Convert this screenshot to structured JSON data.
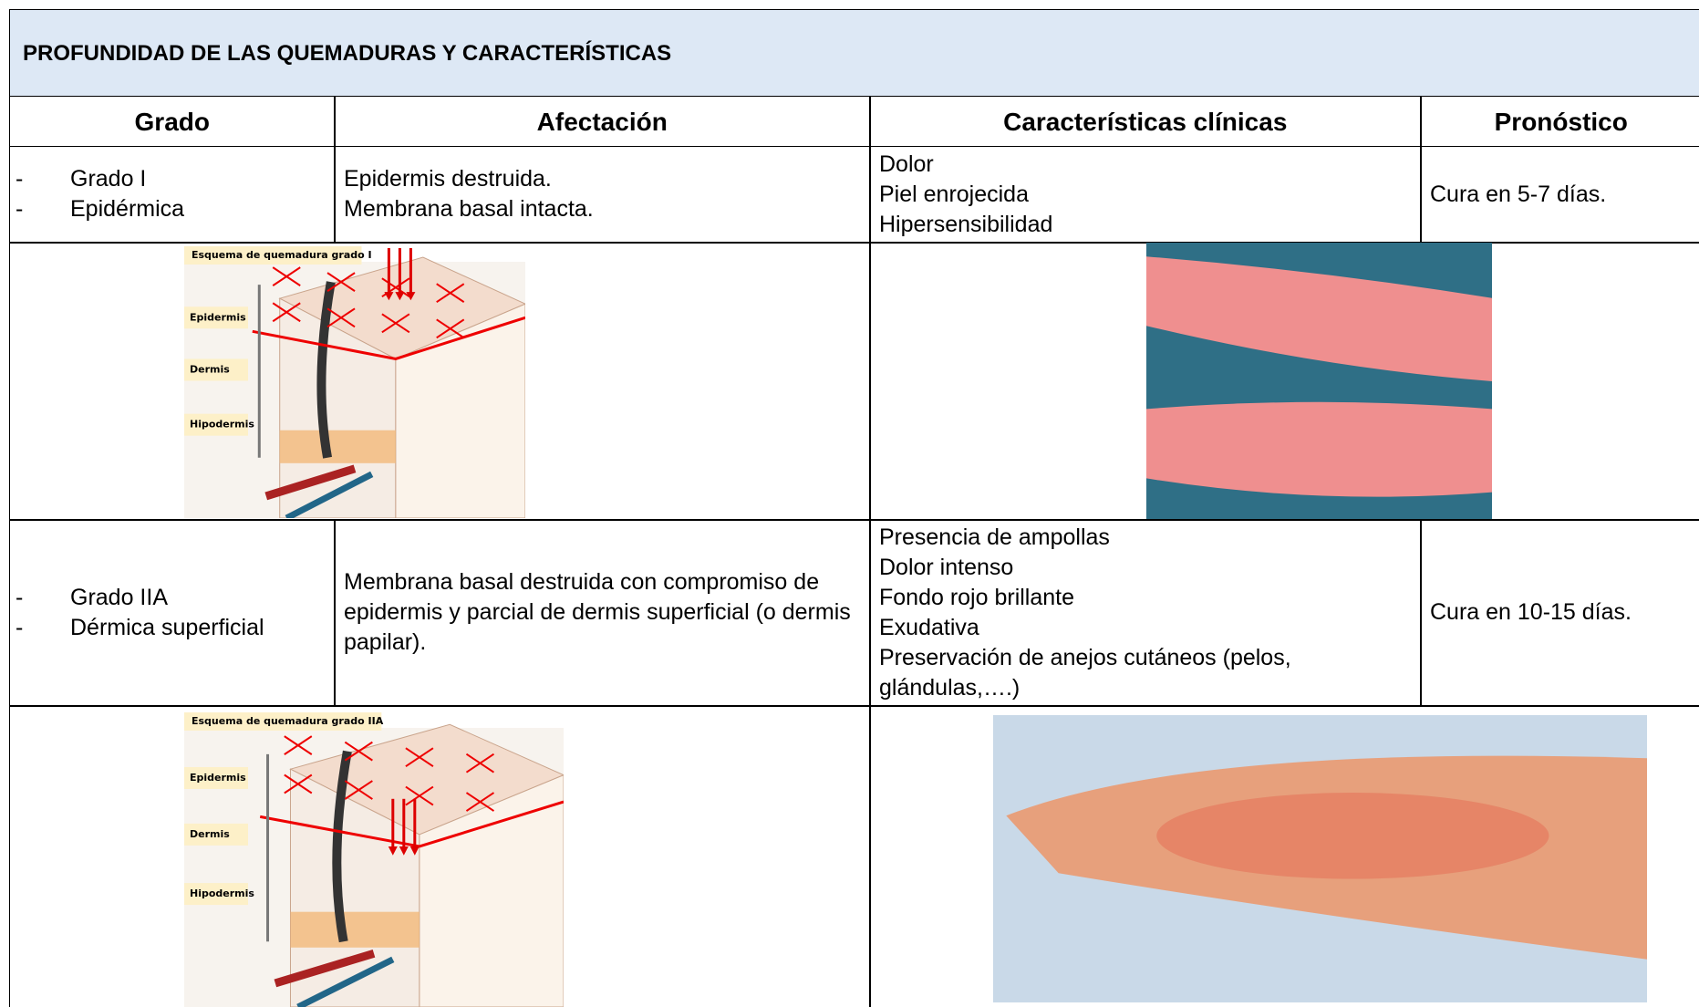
{
  "title": "PROFUNDIDAD DE LAS QUEMADURAS Y CARACTERÍSTICAS",
  "table": {
    "headers": [
      "Grado",
      "Afectación",
      "Características clínicas",
      "Pronóstico"
    ],
    "rows": [
      {
        "grado": [
          "Grado I",
          "Epidérmica"
        ],
        "afectacion": [
          "Epidermis destruida.",
          "Membrana basal intacta."
        ],
        "caracteristicas": [
          "Dolor",
          "Piel enrojecida",
          "Hipersensibilidad"
        ],
        "pronostico": "Cura en 5-7 días.",
        "diagram": {
          "title": "Esquema de quemadura grado I",
          "labels": [
            "Epidermis",
            "Dermis",
            "Hipodermis"
          ]
        }
      },
      {
        "grado": [
          "Grado IIA",
          "Dérmica superficial"
        ],
        "afectacion": [
          "Membrana basal destruida con compromiso de epidermis y parcial de dermis superficial (o dermis papilar)."
        ],
        "caracteristicas": [
          "Presencia de ampollas",
          "Dolor intenso",
          "Fondo rojo brillante",
          "Exudativa",
          "Preservación de anejos cutáneos (pelos, glándulas,….)"
        ],
        "pronostico": "Cura en 10-15 días.",
        "diagram": {
          "title": "Esquema de quemadura grado IIA",
          "labels": [
            "Epidermis",
            "Dermis",
            "Hipodermis"
          ]
        }
      }
    ]
  }
}
